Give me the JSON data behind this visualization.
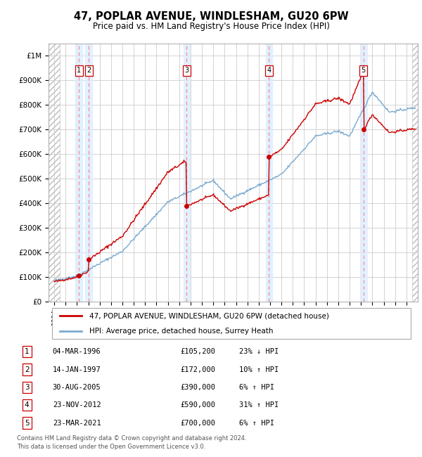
{
  "title": "47, POPLAR AVENUE, WINDLESHAM, GU20 6PW",
  "subtitle": "Price paid vs. HM Land Registry's House Price Index (HPI)",
  "property_label": "47, POPLAR AVENUE, WINDLESHAM, GU20 6PW (detached house)",
  "hpi_label": "HPI: Average price, detached house, Surrey Heath",
  "footer1": "Contains HM Land Registry data © Crown copyright and database right 2024.",
  "footer2": "This data is licensed under the Open Government Licence v3.0.",
  "sales": [
    {
      "num": 1,
      "date": "04-MAR-1996",
      "price": 105200,
      "year": 1996.17,
      "pct": "23%",
      "dir": "↓"
    },
    {
      "num": 2,
      "date": "14-JAN-1997",
      "price": 172000,
      "year": 1997.04,
      "pct": "10%",
      "dir": "↑"
    },
    {
      "num": 3,
      "date": "30-AUG-2005",
      "price": 390000,
      "year": 2005.66,
      "pct": "6%",
      "dir": "↑"
    },
    {
      "num": 4,
      "date": "23-NOV-2012",
      "price": 590000,
      "year": 2012.9,
      "pct": "31%",
      "dir": "↑"
    },
    {
      "num": 5,
      "date": "23-MAR-2021",
      "price": 700000,
      "year": 2021.22,
      "pct": "6%",
      "dir": "↑"
    }
  ],
  "hpi_color": "#7aaad0",
  "price_color": "#cc0000",
  "dashed_color": "#ff8888",
  "sale_bg_color": "#ddeeff",
  "ylim": [
    0,
    1050000
  ],
  "yticks": [
    0,
    100000,
    200000,
    300000,
    400000,
    500000,
    600000,
    700000,
    800000,
    900000,
    1000000
  ],
  "xlim_start": 1993.5,
  "xlim_end": 2026.0,
  "xticks": [
    1994,
    1995,
    1996,
    1997,
    1998,
    1999,
    2000,
    2001,
    2002,
    2003,
    2004,
    2005,
    2006,
    2007,
    2008,
    2009,
    2010,
    2011,
    2012,
    2013,
    2014,
    2015,
    2016,
    2017,
    2018,
    2019,
    2020,
    2021,
    2022,
    2023,
    2024,
    2025
  ]
}
